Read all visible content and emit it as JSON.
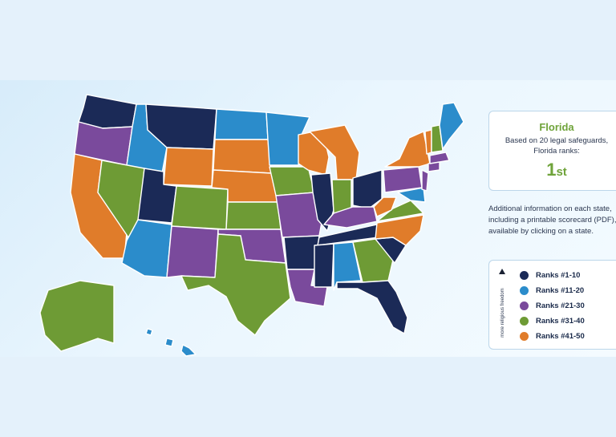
{
  "colors": {
    "ranks_1_10": "#1b2a57",
    "ranks_11_20": "#2b8ccb",
    "ranks_21_30": "#7a4a9c",
    "ranks_31_40": "#6e9b35",
    "ranks_41_50": "#e07c2a"
  },
  "info_card": {
    "state": "Florida",
    "line1": "Based on 20 legal safeguards,",
    "line2": "Florida ranks:",
    "rank_number": "1",
    "rank_suffix": "st"
  },
  "additional_info": {
    "line1": "Additional information on each state,",
    "line2": "including a printable scorecard (PDF), i",
    "line3": "available by clicking on a state."
  },
  "legend": {
    "arrow_icon": "triangle-up-icon",
    "axis_label": "more religious freedom",
    "items": [
      {
        "label": "Ranks #1-10",
        "color": "#1b2a57"
      },
      {
        "label": "Ranks #11-20",
        "color": "#2b8ccb"
      },
      {
        "label": "Ranks #21-30",
        "color": "#7a4a9c"
      },
      {
        "label": "Ranks #31-40",
        "color": "#6e9b35"
      },
      {
        "label": "Ranks #41-50",
        "color": "#e07c2a"
      }
    ]
  }
}
